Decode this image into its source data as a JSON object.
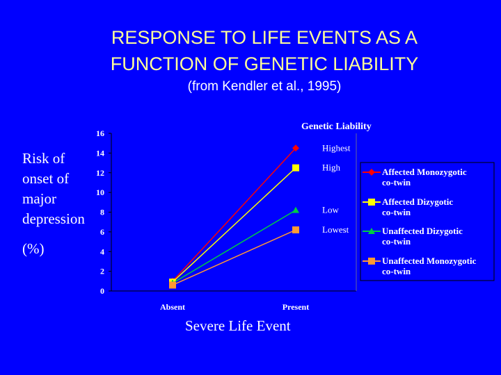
{
  "title_line1": "RESPONSE TO LIFE EVENTS AS A",
  "title_line2": "FUNCTION OF GENETIC LIABILITY",
  "subtitle": "(from Kendler et al., 1995)",
  "colors": {
    "background": "#0000ff",
    "title": "#ffff99",
    "text": "#ffffff",
    "affected_mz": "#ff0000",
    "affected_dz": "#ffff00",
    "unaffected_dz": "#00cc44",
    "unaffected_mz": "#ff9933"
  },
  "chart_data": {
    "type": "line",
    "ylabel": "Risk of\nonset of\nmajor\ndepression",
    "ylabel_unit": "(%)",
    "xlabel": "Severe Life Event",
    "categories": [
      "Absent",
      "Present"
    ],
    "ylim": [
      0,
      16
    ],
    "yticks": [
      0,
      2,
      4,
      6,
      8,
      10,
      12,
      14,
      16
    ],
    "grid": false,
    "legend_position": "right",
    "annotation_title": "Genetic Liability",
    "series": [
      {
        "name": "Affected Monozygotic co-twin",
        "legend_lines": [
          "Affected Monozygotic",
          "co-twin"
        ],
        "liability": "Highest",
        "marker": "diamond",
        "color": "#ff0000",
        "values": [
          1.0,
          14.5
        ]
      },
      {
        "name": "Affected Dizygotic co-twin",
        "legend_lines": [
          "Affected Dizygotic",
          "co-twin"
        ],
        "liability": "High",
        "marker": "square",
        "color": "#ffff00",
        "values": [
          0.9,
          12.5
        ]
      },
      {
        "name": "Unaffected Dizygotic co-twin",
        "legend_lines": [
          "Unaffected Dizygotic",
          "co-twin"
        ],
        "liability": "Low",
        "marker": "triangle",
        "color": "#00cc44",
        "values": [
          0.8,
          8.2
        ]
      },
      {
        "name": "Unaffected Monozygotic co-twin",
        "legend_lines": [
          "Unaffected Monozygotic",
          "co-twin"
        ],
        "liability": "Lowest",
        "marker": "square",
        "color": "#ff9933",
        "values": [
          0.6,
          6.2
        ]
      }
    ]
  }
}
